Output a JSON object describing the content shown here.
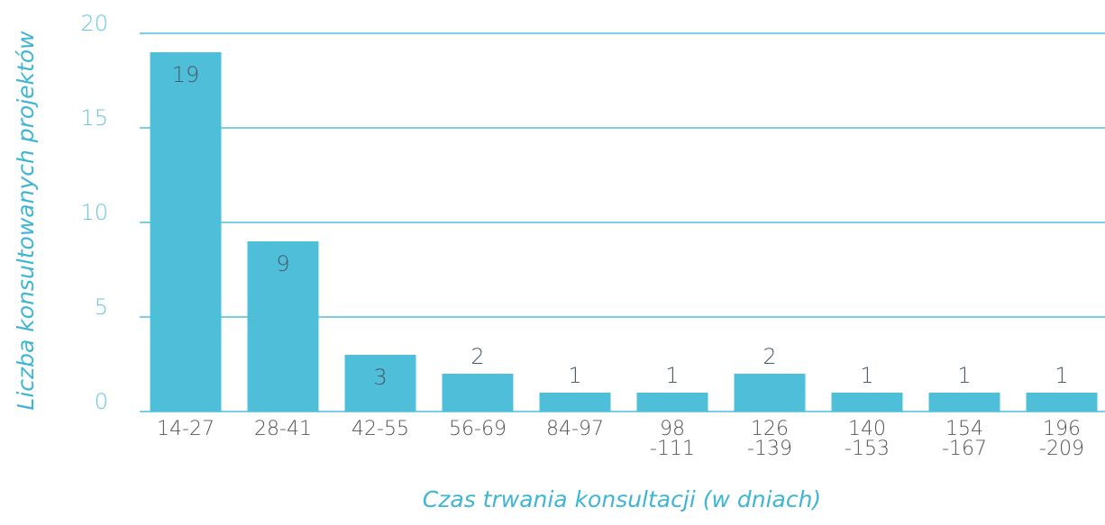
{
  "chart_data": {
    "type": "bar",
    "x_label": "Czas trwania konsultacji (w dniach)",
    "y_label": "Liczba konsultowanych projektów",
    "categories": [
      "14-27",
      "28-41",
      "42-55",
      "56-69",
      "84-97",
      "98\n-111",
      "126\n-139",
      "140\n-153",
      "154\n-167",
      "196\n-209"
    ],
    "values": [
      19,
      9,
      3,
      2,
      1,
      1,
      2,
      1,
      1,
      1
    ],
    "color": "#4fbfd9",
    "ylim": [
      0,
      20
    ],
    "yticks": [
      0,
      5,
      10,
      15,
      20
    ],
    "grid": true
  }
}
